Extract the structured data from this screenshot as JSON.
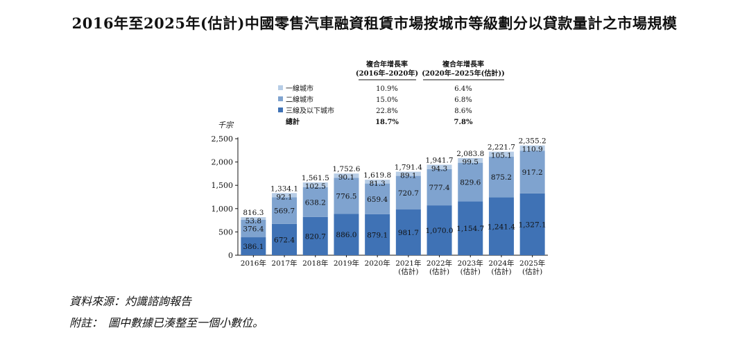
{
  "title": "2016年至2025年(估計)中國零售汽車融資租賃市場按城市等級劃分以貸款量計之市場規模",
  "legend": {
    "cagr_header_1": [
      "複合年增長率",
      "(2016年–2020年)"
    ],
    "cagr_header_2": [
      "複合年增長率",
      "(2020年–2025年(估計))"
    ],
    "rows": [
      {
        "label": "一線城市",
        "cagr1": "10.9%",
        "cagr2": "6.4%",
        "color": "#b7cde6",
        "bold": false
      },
      {
        "label": "二線城市",
        "cagr1": "15.0%",
        "cagr2": "6.8%",
        "color": "#7fa3cf",
        "bold": false
      },
      {
        "label": "三線及以下城市",
        "cagr1": "22.8%",
        "cagr2": "8.6%",
        "color": "#3f72b5",
        "bold": false
      },
      {
        "label": "總計",
        "cagr1": "18.7%",
        "cagr2": "7.8%",
        "color": null,
        "bold": true
      }
    ]
  },
  "chart_data": {
    "type": "bar",
    "stacked": true,
    "ylabel": "千宗",
    "ylim": [
      0,
      2500
    ],
    "yticks": [
      "0",
      "500",
      "1,000",
      "1,500",
      "2,000",
      "2,500"
    ],
    "categories": [
      [
        "2016年"
      ],
      [
        "2017年"
      ],
      [
        "2018年"
      ],
      [
        "2019年"
      ],
      [
        "2020年"
      ],
      [
        "2021年",
        "(估計)"
      ],
      [
        "2022年",
        "(估計)"
      ],
      [
        "2023年",
        "(估計)"
      ],
      [
        "2024年",
        "(估計)"
      ],
      [
        "2025年",
        "(估計)"
      ]
    ],
    "series": [
      {
        "name": "三線及以下城市",
        "color": "#3f72b5",
        "values": [
          386.1,
          672.4,
          820.7,
          886.0,
          879.1,
          981.7,
          1070.0,
          1154.7,
          1241.4,
          1327.1
        ],
        "labels": [
          "386.1",
          "672.4",
          "820.7",
          "886.0",
          "879.1",
          "981.7",
          "1,070.0",
          "1,154.7",
          "1,241.4",
          "1,327.1"
        ]
      },
      {
        "name": "二線城市",
        "color": "#7fa3cf",
        "values": [
          376.4,
          569.7,
          638.2,
          776.5,
          659.4,
          720.7,
          777.4,
          829.6,
          875.2,
          917.2
        ],
        "labels": [
          "376.4",
          "569.7",
          "638.2",
          "776.5",
          "659.4",
          "720.7",
          "777.4",
          "829.6",
          "875.2",
          "917.2"
        ]
      },
      {
        "name": "一線城市",
        "color": "#b7cde6",
        "values": [
          53.8,
          92.1,
          102.5,
          90.1,
          81.3,
          89.1,
          94.3,
          99.5,
          105.1,
          110.9
        ],
        "labels": [
          "53.8",
          "92.1",
          "102.5",
          "90.1",
          "81.3",
          "89.1",
          "94.3",
          "99.5",
          "105.1",
          "110.9"
        ]
      }
    ],
    "totals": [
      816.3,
      1334.1,
      1561.5,
      1752.6,
      1619.8,
      1791.4,
      1941.7,
      2083.8,
      2221.7,
      2355.2
    ],
    "total_labels": [
      "816.3",
      "1,334.1",
      "1,561.5",
      "1,752.6",
      "1,619.8",
      "1,791.4",
      "1,941.7",
      "2,083.8",
      "2,221.7",
      "2,355.2"
    ]
  },
  "source": "資料來源：灼識諮詢報告",
  "note": "附註：　圖中數據已湊整至一個小數位。"
}
